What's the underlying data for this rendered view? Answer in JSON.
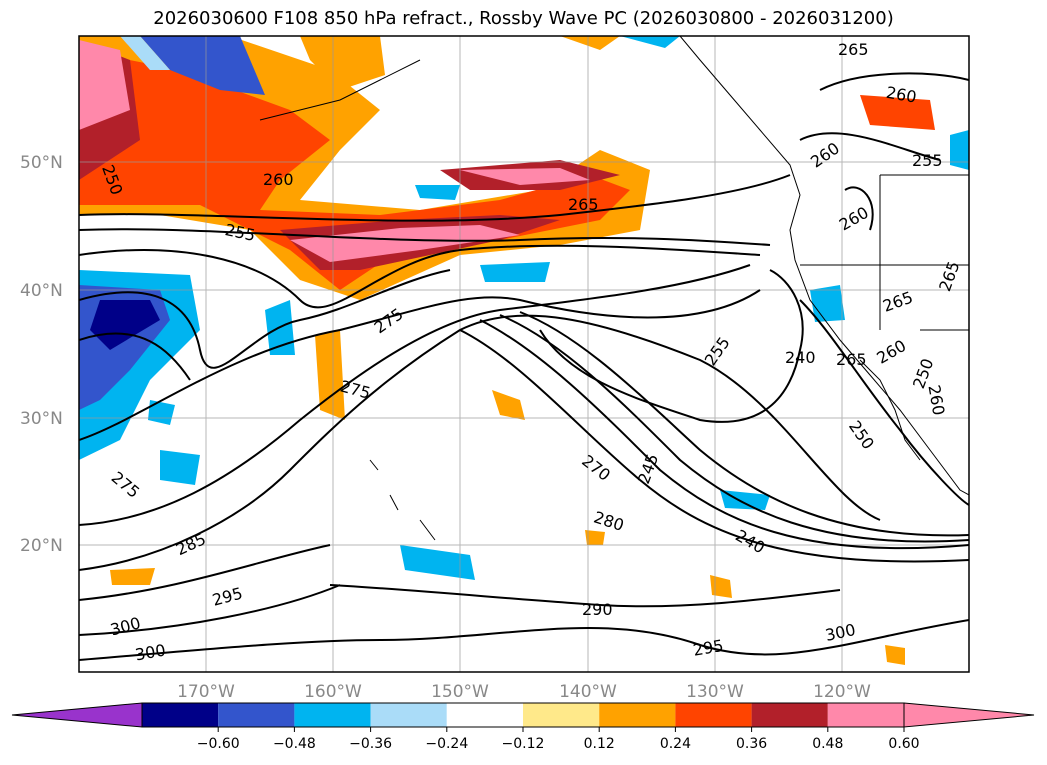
{
  "title": "2026030600 F108 850 hPa refract., Rossby Wave PC (2026030800 - 2026031200)",
  "lat_labels": [
    "50°N",
    "40°N",
    "30°N",
    "20°N"
  ],
  "lon_labels": [
    "170°W",
    "160°W",
    "150°W",
    "140°W",
    "130°W",
    "120°W"
  ],
  "colorbar": {
    "ticks": [
      "−0.60",
      "−0.48",
      "−0.36",
      "−0.24",
      "−0.12",
      "0.12",
      "0.24",
      "0.36",
      "0.48",
      "0.60"
    ],
    "colors": [
      "#9933cc",
      "#000088",
      "#3355cc",
      "#00b4f0",
      "#aadcf8",
      "#ffffff",
      "#ffe98a",
      "#ffa200",
      "#ff4400",
      "#b2202a",
      "#ff88aa",
      "#ff88aa"
    ]
  },
  "contour_labels": [
    "250",
    "260",
    "255",
    "265",
    "275",
    "275",
    "275",
    "285",
    "295",
    "300",
    "300",
    "265",
    "260",
    "260",
    "255",
    "260",
    "265",
    "265",
    "255",
    "240",
    "265",
    "260",
    "250",
    "270",
    "245",
    "280",
    "240",
    "290",
    "295",
    "300",
    "250",
    "260"
  ]
}
